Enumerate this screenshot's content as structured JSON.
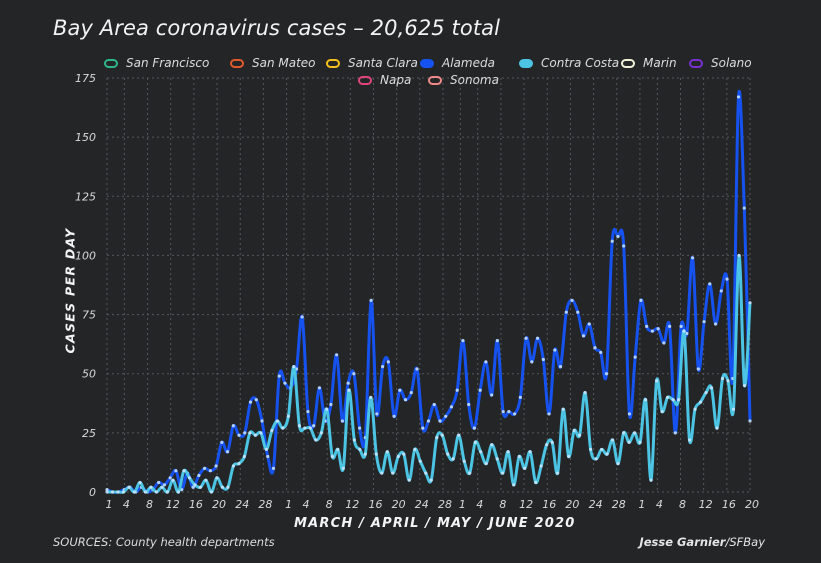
{
  "chart_data": {
    "type": "line",
    "title": "Bay Area coronavirus cases – 20,625 total",
    "xlabel": "MARCH / APRIL / MAY / JUNE 2020",
    "ylabel": "CASES PER DAY",
    "ylim": [
      0,
      175
    ],
    "yticks": [
      0,
      25,
      50,
      75,
      100,
      125,
      150,
      175
    ],
    "xtick_labels": [
      "1",
      "4",
      "8",
      "12",
      "16",
      "20",
      "24",
      "28",
      "1",
      "4",
      "8",
      "12",
      "16",
      "20",
      "24",
      "28",
      "1",
      "4",
      "8",
      "12",
      "16",
      "20",
      "24",
      "28",
      "1",
      "4",
      "8",
      "12",
      "16",
      "20"
    ],
    "x_start": "2020-03-01",
    "x_end": "2020-06-20",
    "grid": true,
    "legend_position": "top",
    "series": [
      {
        "name": "San Francisco",
        "color": "#2fb58a"
      },
      {
        "name": "San Mateo",
        "color": "#e05a2b"
      },
      {
        "name": "Santa Clara",
        "color": "#f5c21b"
      },
      {
        "name": "Alameda",
        "color": "#1552f0",
        "values": [
          1,
          0,
          0,
          1,
          2,
          0,
          2,
          0,
          1,
          4,
          3,
          6,
          9,
          1,
          8,
          2,
          7,
          10,
          9,
          11,
          21,
          17,
          28,
          24,
          25,
          38,
          39,
          30,
          15,
          10,
          49,
          46,
          44,
          52,
          74,
          34,
          28,
          44,
          30,
          37,
          58,
          30,
          46,
          50,
          27,
          23,
          81,
          33,
          53,
          55,
          32,
          43,
          39,
          42,
          52,
          27,
          30,
          37,
          30,
          32,
          36,
          43,
          64,
          37,
          27,
          43,
          55,
          41,
          64,
          34,
          34,
          33,
          40,
          65,
          55,
          65,
          56,
          33,
          60,
          53,
          76,
          81,
          76,
          66,
          71,
          61,
          59,
          50,
          106,
          108,
          104,
          33,
          57,
          81,
          70,
          68,
          69,
          63,
          70,
          25,
          70,
          67,
          99,
          52,
          72,
          88,
          71,
          85,
          90,
          48,
          167,
          120,
          30
        ],
        "note": "daily values read from chart"
      },
      {
        "name": "Contra Costa",
        "color": "#4cc4e4",
        "values": [
          0,
          0,
          0,
          0,
          2,
          0,
          4,
          0,
          2,
          0,
          2,
          0,
          5,
          0,
          9,
          6,
          3,
          2,
          5,
          0,
          6,
          2,
          2,
          11,
          12,
          15,
          25,
          24,
          25,
          18,
          26,
          30,
          27,
          32,
          53,
          28,
          27,
          27,
          22,
          25,
          35,
          15,
          18,
          10,
          43,
          22,
          18,
          16,
          40,
          16,
          8,
          17,
          8,
          15,
          16,
          5,
          18,
          13,
          8,
          5,
          23,
          24,
          16,
          14,
          24,
          13,
          8,
          21,
          17,
          12,
          20,
          14,
          8,
          17,
          3,
          15,
          10,
          17,
          4,
          11,
          20,
          21,
          8,
          35,
          15,
          26,
          24,
          42,
          18,
          14,
          18,
          16,
          22,
          12,
          25,
          21,
          25,
          21,
          39,
          5,
          47,
          34,
          40,
          39,
          39,
          68,
          22,
          35,
          38,
          42,
          44,
          27,
          48,
          47,
          35,
          100,
          45,
          80
        ]
      },
      {
        "name": "Marin",
        "color": "#f1f1da"
      },
      {
        "name": "Solano",
        "color": "#7a2fd0"
      },
      {
        "name": "Napa",
        "color": "#e0447a"
      },
      {
        "name": "Sonoma",
        "color": "#f08a8a"
      }
    ]
  },
  "footer": {
    "source": "SOURCES: County health departments",
    "credit_name": "Jesse Garnier",
    "credit_org": "/SFBay"
  }
}
